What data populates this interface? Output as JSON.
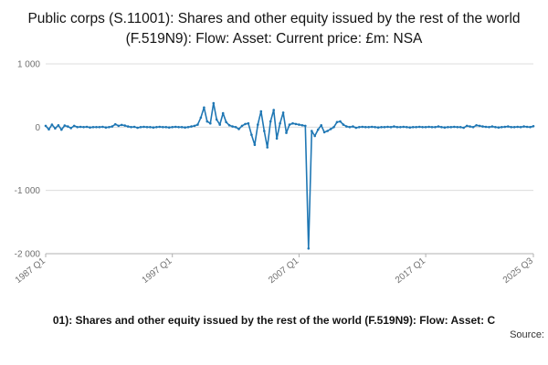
{
  "title": "Public corps (S.11001): Shares and other equity issued by the rest of the world (F.519N9): Flow: Asset: Current price: £m: NSA",
  "footer": {
    "caption": "01): Shares and other equity issued by the rest of the world (F.519N9): Flow: Asset: C",
    "source_label": "Source:"
  },
  "chart_data": {
    "type": "line",
    "title": "Public corps (S.11001): Shares and other equity issued by the rest of the world (F.519N9): Flow: Asset: Current price: £m: NSA",
    "xlabel": "",
    "ylabel": "",
    "x_start": "1987 Q1",
    "x_end": "2025 Q3",
    "frequency": "quarterly",
    "ylim": [
      -2000,
      1000
    ],
    "color": "#1f77b4",
    "grid": true,
    "yticks": [
      {
        "value": 1000,
        "label": "1 000"
      },
      {
        "value": 0,
        "label": "0"
      },
      {
        "value": -1000,
        "label": "-1 000"
      },
      {
        "value": -2000,
        "label": "-2 000"
      }
    ],
    "xticks": [
      {
        "index": 0,
        "label": "1987 Q1"
      },
      {
        "index": 40,
        "label": "1997 Q1"
      },
      {
        "index": 80,
        "label": "2007 Q1"
      },
      {
        "index": 120,
        "label": "2017 Q1"
      },
      {
        "index": 154,
        "label": "2025 Q3"
      }
    ],
    "values": [
      20,
      -35,
      40,
      -20,
      30,
      -40,
      25,
      10,
      -15,
      20,
      0,
      5,
      0,
      5,
      -5,
      0,
      0,
      0,
      5,
      -5,
      0,
      10,
      45,
      20,
      35,
      25,
      10,
      0,
      5,
      -10,
      0,
      5,
      0,
      0,
      -5,
      0,
      5,
      0,
      0,
      -5,
      0,
      5,
      0,
      0,
      -5,
      0,
      10,
      20,
      40,
      150,
      310,
      90,
      60,
      380,
      120,
      40,
      220,
      80,
      30,
      10,
      0,
      -30,
      20,
      50,
      60,
      -120,
      -280,
      40,
      250,
      -60,
      -320,
      90,
      270,
      -180,
      60,
      230,
      -90,
      40,
      60,
      50,
      40,
      30,
      20,
      -1918,
      -60,
      -140,
      -40,
      30,
      -80,
      -60,
      -30,
      0,
      80,
      90,
      40,
      10,
      0,
      10,
      -10,
      0,
      5,
      0,
      0,
      5,
      0,
      -5,
      0,
      0,
      5,
      0,
      10,
      0,
      0,
      5,
      0,
      -5,
      0,
      0,
      5,
      0,
      0,
      5,
      0,
      0,
      10,
      0,
      -5,
      0,
      0,
      5,
      0,
      0,
      -10,
      20,
      10,
      0,
      30,
      20,
      10,
      5,
      0,
      10,
      0,
      -5,
      0,
      5,
      10,
      0,
      0,
      5,
      0,
      10,
      5,
      0,
      15
    ]
  }
}
